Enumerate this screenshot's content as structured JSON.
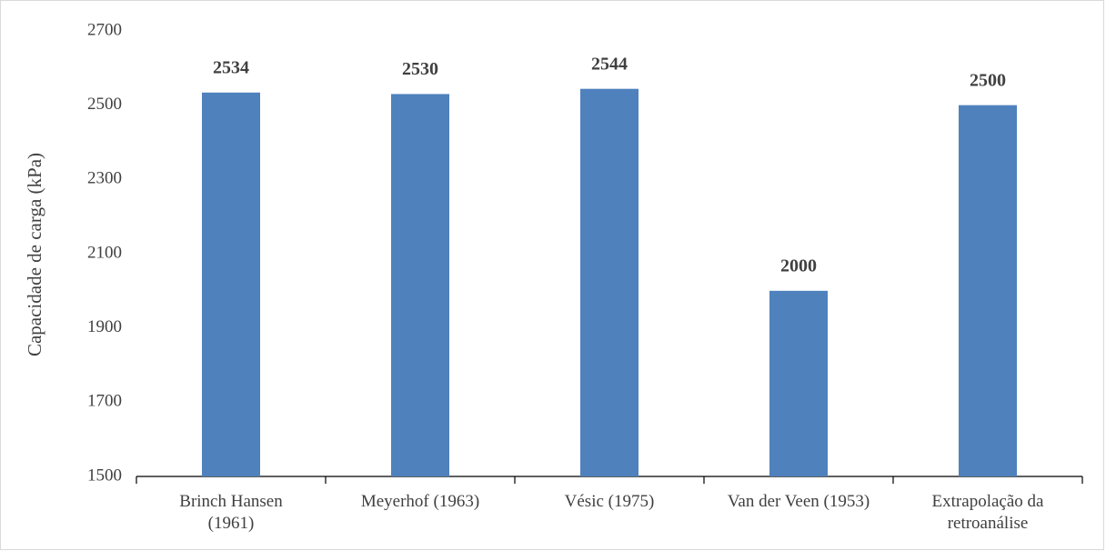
{
  "chart_data": {
    "type": "bar",
    "y_label": "Capacidade de carga (kPa)",
    "categories": [
      "Brinch Hansen (1961)",
      "Meyerhof (1963)",
      "Vésic (1975)",
      "Van der Veen (1953)",
      "Extrapolação da retroanálise"
    ],
    "values": [
      2534,
      2530,
      2544,
      2000,
      2500
    ],
    "color": "#4f81bd",
    "ylim": [
      1500,
      2700
    ],
    "yticks": [
      1500,
      1700,
      1900,
      2100,
      2300,
      2500,
      2700
    ],
    "grid": false
  }
}
